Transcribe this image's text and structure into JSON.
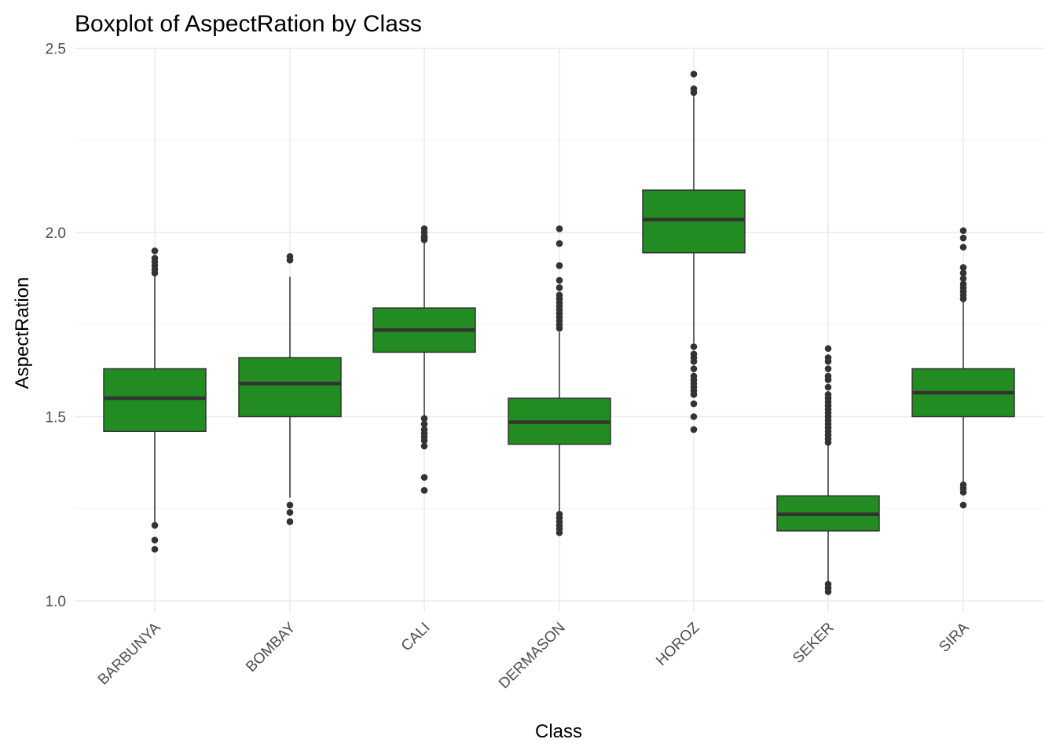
{
  "chart_data": {
    "type": "boxplot",
    "title": "Boxplot of AspectRation by Class",
    "xlabel": "Class",
    "ylabel": "AspectRation",
    "ylim": [
      0.97,
      2.5
    ],
    "yticks": [
      1.0,
      1.5,
      2.0,
      2.5
    ],
    "ytick_labels": [
      "1.0",
      "1.5",
      "2.0",
      "2.5"
    ],
    "grid": true,
    "box_fill": "#228b22",
    "line_color": "#333333",
    "categories": [
      "BARBUNYA",
      "BOMBAY",
      "CALI",
      "DERMASON",
      "HOROZ",
      "SEKER",
      "SIRA"
    ],
    "boxes": [
      {
        "category": "BARBUNYA",
        "q1": 1.46,
        "median": 1.55,
        "q3": 1.63,
        "whisker_low": 1.21,
        "whisker_high": 1.89,
        "outliers": [
          1.95,
          1.93,
          1.92,
          1.91,
          1.9,
          1.89,
          1.205,
          1.165,
          1.14
        ]
      },
      {
        "category": "BOMBAY",
        "q1": 1.5,
        "median": 1.59,
        "q3": 1.66,
        "whisker_low": 1.28,
        "whisker_high": 1.88,
        "outliers": [
          1.935,
          1.925,
          1.26,
          1.24,
          1.215
        ]
      },
      {
        "category": "CALI",
        "q1": 1.675,
        "median": 1.735,
        "q3": 1.795,
        "whisker_low": 1.5,
        "whisker_high": 1.975,
        "outliers": [
          2.01,
          2.0,
          1.99,
          1.985,
          1.98,
          1.495,
          1.48,
          1.465,
          1.455,
          1.445,
          1.435,
          1.42,
          1.335,
          1.3
        ]
      },
      {
        "category": "DERMASON",
        "q1": 1.425,
        "median": 1.485,
        "q3": 1.55,
        "whisker_low": 1.24,
        "whisker_high": 1.73,
        "outliers": [
          2.01,
          1.97,
          1.91,
          1.87,
          1.85,
          1.83,
          1.82,
          1.81,
          1.8,
          1.79,
          1.78,
          1.77,
          1.76,
          1.75,
          1.74,
          1.235,
          1.225,
          1.215,
          1.205,
          1.195,
          1.185
        ]
      },
      {
        "category": "HOROZ",
        "q1": 1.945,
        "median": 2.035,
        "q3": 2.115,
        "whisker_low": 1.7,
        "whisker_high": 2.37,
        "outliers": [
          2.43,
          2.39,
          2.38,
          1.69,
          1.67,
          1.66,
          1.65,
          1.63,
          1.61,
          1.6,
          1.59,
          1.58,
          1.57,
          1.56,
          1.535,
          1.5,
          1.465
        ]
      },
      {
        "category": "SEKER",
        "q1": 1.19,
        "median": 1.235,
        "q3": 1.285,
        "whisker_low": 1.05,
        "whisker_high": 1.425,
        "outliers": [
          1.685,
          1.66,
          1.65,
          1.63,
          1.61,
          1.6,
          1.58,
          1.56,
          1.55,
          1.54,
          1.53,
          1.52,
          1.51,
          1.5,
          1.49,
          1.48,
          1.47,
          1.46,
          1.45,
          1.44,
          1.43,
          1.045,
          1.035,
          1.025
        ]
      },
      {
        "category": "SIRA",
        "q1": 1.5,
        "median": 1.565,
        "q3": 1.63,
        "whisker_low": 1.32,
        "whisker_high": 1.815,
        "outliers": [
          2.005,
          1.985,
          1.96,
          1.905,
          1.89,
          1.875,
          1.86,
          1.85,
          1.84,
          1.83,
          1.82,
          1.315,
          1.305,
          1.295,
          1.26
        ]
      }
    ]
  }
}
